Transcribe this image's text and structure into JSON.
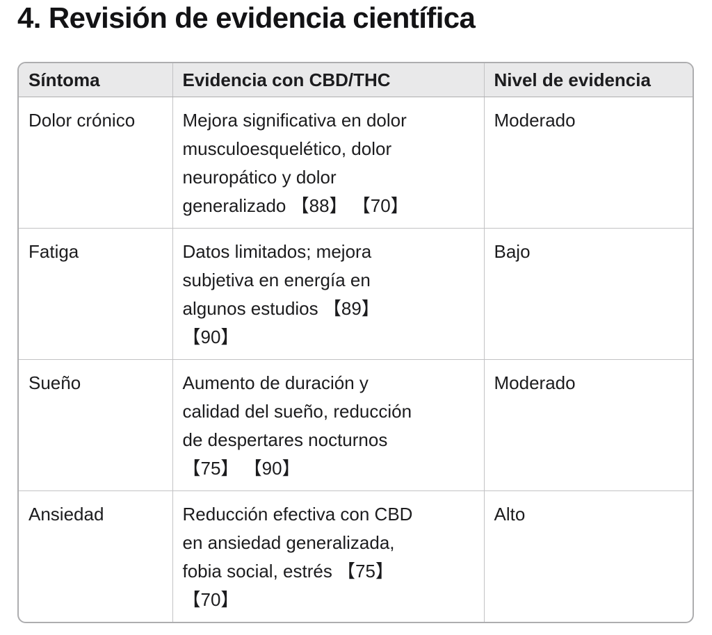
{
  "page": {
    "heading": "4. Revisión de evidencia científica"
  },
  "colors": {
    "page_background": "#ffffff",
    "text": "#1c1c1e",
    "header_background": "#e9e9ea",
    "border_outer": "#adadaf",
    "border_inner": "#c2c2c4"
  },
  "table": {
    "columns": [
      "Síntoma",
      "Evidencia con CBD/THC",
      "Nivel de evidencia"
    ],
    "rows": [
      {
        "sintoma": "Dolor crónico",
        "evidencia": "Mejora significativa en dolor\nmusculoesquelético, dolor\nneuropático y dolor\ngeneralizado 【88】 【70】",
        "nivel": "Moderado"
      },
      {
        "sintoma": "Fatiga",
        "evidencia": "Datos limitados; mejora\nsubjetiva en energía en\nalgunos estudios 【89】\n【90】",
        "nivel": "Bajo"
      },
      {
        "sintoma": "Sueño",
        "evidencia": "Aumento de duración y\ncalidad del sueño, reducción\nde despertares nocturnos\n【75】 【90】",
        "nivel": "Moderado"
      },
      {
        "sintoma": "Ansiedad",
        "evidencia": "Reducción efectiva con CBD\nen ansiedad generalizada,\nfobia social, estrés 【75】\n【70】",
        "nivel": "Alto"
      }
    ]
  }
}
